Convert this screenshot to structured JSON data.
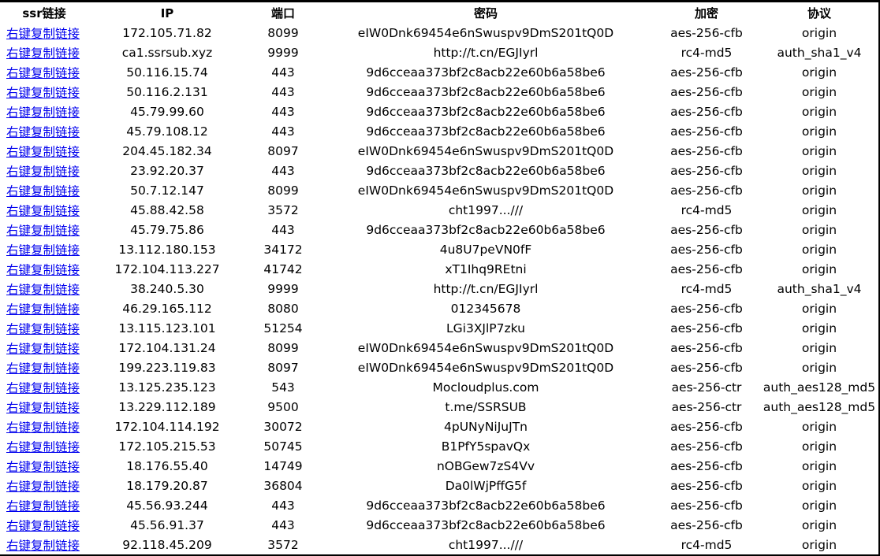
{
  "table": {
    "headers": {
      "link": "ssr链接",
      "ip": "IP",
      "port": "端口",
      "password": "密码",
      "encryption": "加密",
      "protocol": "协议"
    },
    "link_label": "右键复制链接",
    "rows": [
      {
        "ip": "172.105.71.82",
        "port": "8099",
        "password": "eIW0Dnk69454e6nSwuspv9DmS201tQ0D",
        "encryption": "aes-256-cfb",
        "protocol": "origin"
      },
      {
        "ip": "ca1.ssrsub.xyz",
        "port": "9999",
        "password": "http://t.cn/EGJIyrl",
        "encryption": "rc4-md5",
        "protocol": "auth_sha1_v4"
      },
      {
        "ip": "50.116.15.74",
        "port": "443",
        "password": "9d6cceaa373bf2c8acb22e60b6a58be6",
        "encryption": "aes-256-cfb",
        "protocol": "origin"
      },
      {
        "ip": "50.116.2.131",
        "port": "443",
        "password": "9d6cceaa373bf2c8acb22e60b6a58be6",
        "encryption": "aes-256-cfb",
        "protocol": "origin"
      },
      {
        "ip": "45.79.99.60",
        "port": "443",
        "password": "9d6cceaa373bf2c8acb22e60b6a58be6",
        "encryption": "aes-256-cfb",
        "protocol": "origin"
      },
      {
        "ip": "45.79.108.12",
        "port": "443",
        "password": "9d6cceaa373bf2c8acb22e60b6a58be6",
        "encryption": "aes-256-cfb",
        "protocol": "origin"
      },
      {
        "ip": "204.45.182.34",
        "port": "8097",
        "password": "eIW0Dnk69454e6nSwuspv9DmS201tQ0D",
        "encryption": "aes-256-cfb",
        "protocol": "origin"
      },
      {
        "ip": "23.92.20.37",
        "port": "443",
        "password": "9d6cceaa373bf2c8acb22e60b6a58be6",
        "encryption": "aes-256-cfb",
        "protocol": "origin"
      },
      {
        "ip": "50.7.12.147",
        "port": "8099",
        "password": "eIW0Dnk69454e6nSwuspv9DmS201tQ0D",
        "encryption": "aes-256-cfb",
        "protocol": "origin"
      },
      {
        "ip": "45.88.42.58",
        "port": "3572",
        "password": "cht1997...///",
        "encryption": "rc4-md5",
        "protocol": "origin"
      },
      {
        "ip": "45.79.75.86",
        "port": "443",
        "password": "9d6cceaa373bf2c8acb22e60b6a58be6",
        "encryption": "aes-256-cfb",
        "protocol": "origin"
      },
      {
        "ip": "13.112.180.153",
        "port": "34172",
        "password": "4u8U7peVN0fF",
        "encryption": "aes-256-cfb",
        "protocol": "origin"
      },
      {
        "ip": "172.104.113.227",
        "port": "41742",
        "password": "xT1Ihq9REtni",
        "encryption": "aes-256-cfb",
        "protocol": "origin"
      },
      {
        "ip": "38.240.5.30",
        "port": "9999",
        "password": "http://t.cn/EGJIyrl",
        "encryption": "rc4-md5",
        "protocol": "auth_sha1_v4"
      },
      {
        "ip": "46.29.165.112",
        "port": "8080",
        "password": "012345678",
        "encryption": "aes-256-cfb",
        "protocol": "origin"
      },
      {
        "ip": "13.115.123.101",
        "port": "51254",
        "password": "LGi3XJlP7zku",
        "encryption": "aes-256-cfb",
        "protocol": "origin"
      },
      {
        "ip": "172.104.131.24",
        "port": "8099",
        "password": "eIW0Dnk69454e6nSwuspv9DmS201tQ0D",
        "encryption": "aes-256-cfb",
        "protocol": "origin"
      },
      {
        "ip": "199.223.119.83",
        "port": "8097",
        "password": "eIW0Dnk69454e6nSwuspv9DmS201tQ0D",
        "encryption": "aes-256-cfb",
        "protocol": "origin"
      },
      {
        "ip": "13.125.235.123",
        "port": "543",
        "password": "Mocloudplus.com",
        "encryption": "aes-256-ctr",
        "protocol": "auth_aes128_md5"
      },
      {
        "ip": "13.229.112.189",
        "port": "9500",
        "password": "t.me/SSRSUB",
        "encryption": "aes-256-ctr",
        "protocol": "auth_aes128_md5"
      },
      {
        "ip": "172.104.114.192",
        "port": "30072",
        "password": "4pUNyNiJuJTn",
        "encryption": "aes-256-cfb",
        "protocol": "origin"
      },
      {
        "ip": "172.105.215.53",
        "port": "50745",
        "password": "B1PfY5spavQx",
        "encryption": "aes-256-cfb",
        "protocol": "origin"
      },
      {
        "ip": "18.176.55.40",
        "port": "14749",
        "password": "nOBGew7zS4Vv",
        "encryption": "aes-256-cfb",
        "protocol": "origin"
      },
      {
        "ip": "18.179.20.87",
        "port": "36804",
        "password": "Da0lWjPffG5f",
        "encryption": "aes-256-cfb",
        "protocol": "origin"
      },
      {
        "ip": "45.56.93.244",
        "port": "443",
        "password": "9d6cceaa373bf2c8acb22e60b6a58be6",
        "encryption": "aes-256-cfb",
        "protocol": "origin"
      },
      {
        "ip": "45.56.91.37",
        "port": "443",
        "password": "9d6cceaa373bf2c8acb22e60b6a58be6",
        "encryption": "aes-256-cfb",
        "protocol": "origin"
      },
      {
        "ip": "92.118.45.209",
        "port": "3572",
        "password": "cht1997...///",
        "encryption": "rc4-md5",
        "protocol": "origin"
      }
    ]
  }
}
